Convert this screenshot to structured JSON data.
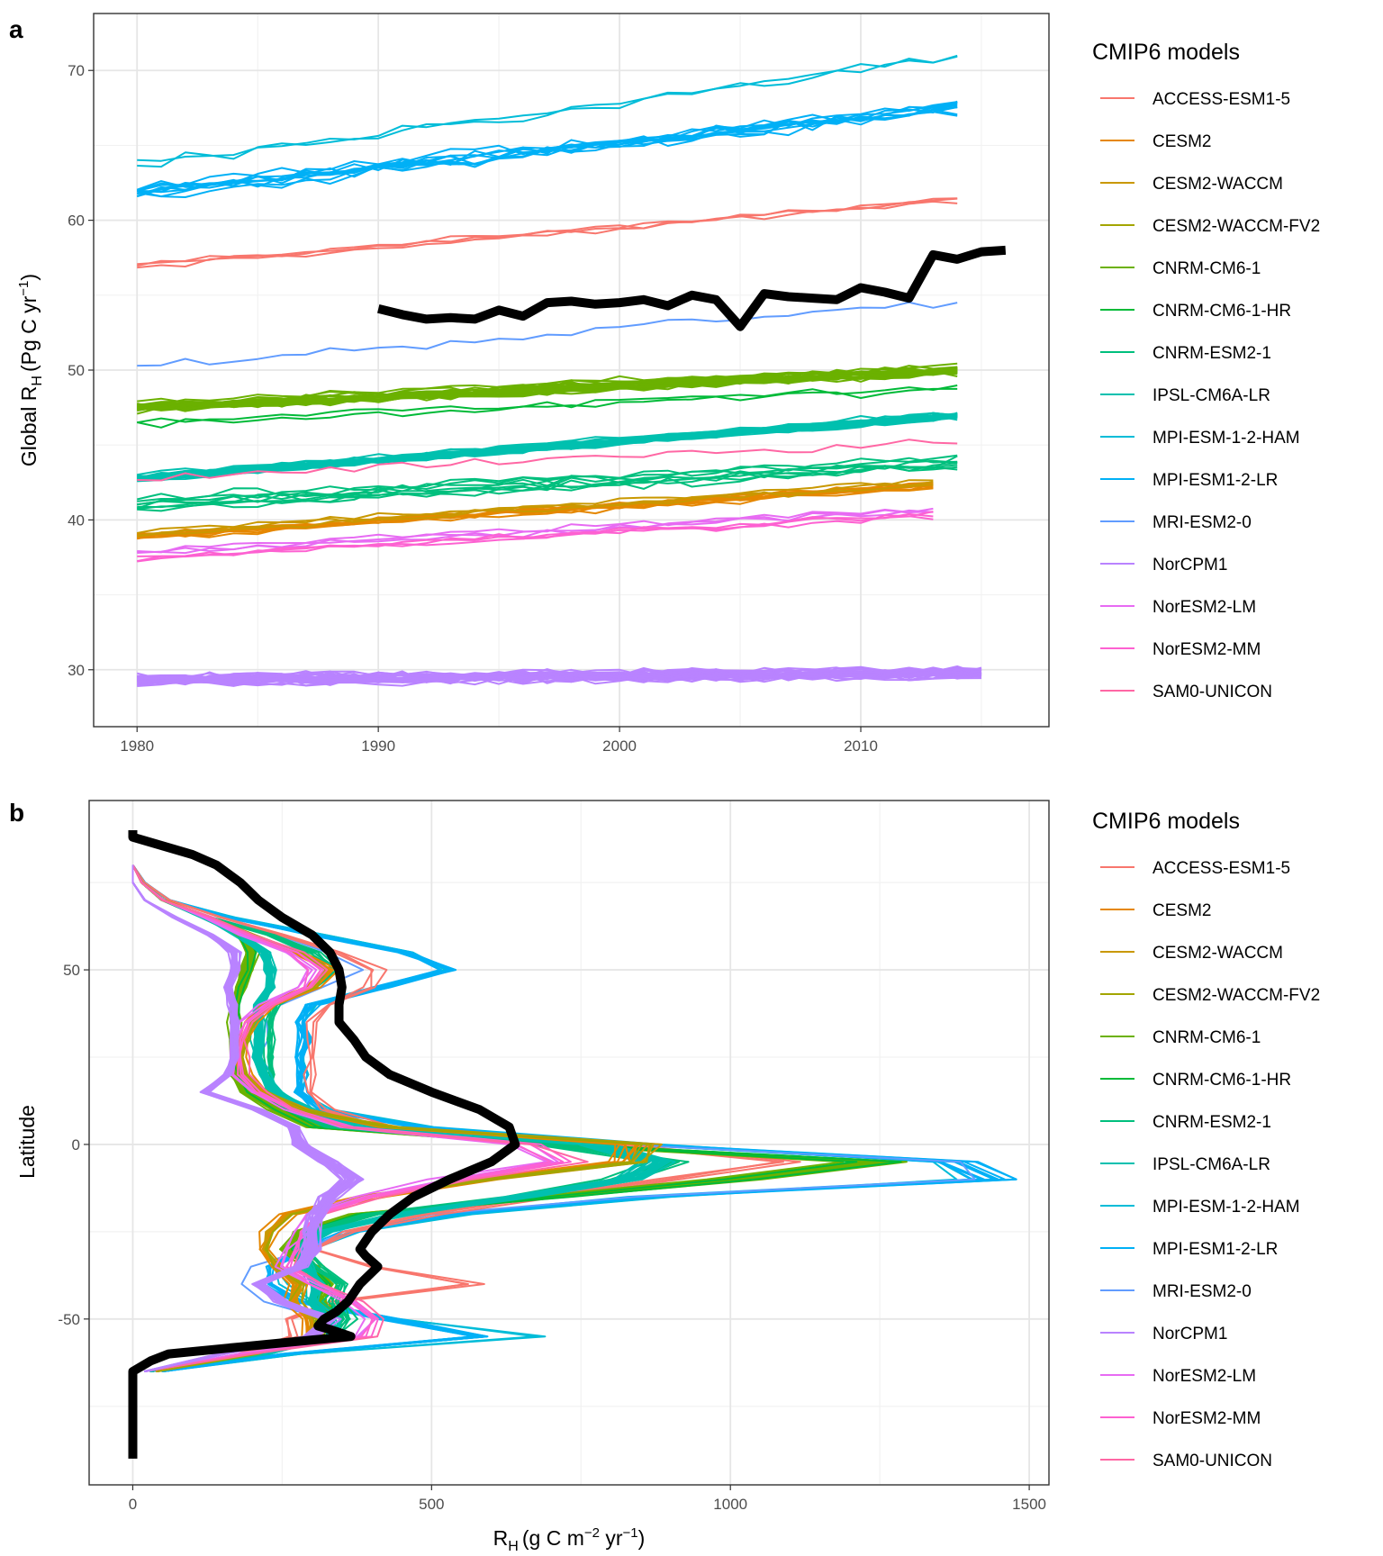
{
  "panels": {
    "a": {
      "letter": "a",
      "ylabel_main": "Global R",
      "ylabel_sub": "H",
      "ylabel_paren": "(Pg C yr",
      "ylabel_sup": "−1",
      "ylabel_close": ")",
      "legend_title": "CMIP6 models"
    },
    "b": {
      "letter": "b",
      "ylabel": "Latitude",
      "xlabel_main": "R",
      "xlabel_sub": "H",
      "xlabel_paren": "(g C m",
      "xlabel_sup1": "−2",
      "xlabel_mid": " yr",
      "xlabel_sup2": "−1",
      "xlabel_close": ")",
      "legend_title": "CMIP6 models"
    }
  },
  "models": [
    {
      "name": "ACCESS-ESM1-5",
      "color": "#F8766D"
    },
    {
      "name": "CESM2",
      "color": "#E58700"
    },
    {
      "name": "CESM2-WACCM",
      "color": "#C99800"
    },
    {
      "name": "CESM2-WACCM-FV2",
      "color": "#A3A500"
    },
    {
      "name": "CNRM-CM6-1",
      "color": "#6BB100"
    },
    {
      "name": "CNRM-CM6-1-HR",
      "color": "#00BA38"
    },
    {
      "name": "CNRM-ESM2-1",
      "color": "#00BF7D"
    },
    {
      "name": "IPSL-CM6A-LR",
      "color": "#00C0AF"
    },
    {
      "name": "MPI-ESM-1-2-HAM",
      "color": "#00BCD8"
    },
    {
      "name": "MPI-ESM1-2-LR",
      "color": "#00B0F6"
    },
    {
      "name": "MRI-ESM2-0",
      "color": "#619CFF"
    },
    {
      "name": "NorCPM1",
      "color": "#B983FF"
    },
    {
      "name": "NorESM2-LM",
      "color": "#E76BF3"
    },
    {
      "name": "NorESM2-MM",
      "color": "#FD61D1"
    },
    {
      "name": "SAM0-UNICON",
      "color": "#FF67A4"
    }
  ],
  "chart_data": [
    {
      "type": "line",
      "panel": "a",
      "xlim": [
        1978.2,
        2017.8
      ],
      "ylim": [
        26.2,
        73.8
      ],
      "xticks": [
        1980,
        1990,
        2000,
        2010
      ],
      "yticks": [
        30,
        40,
        50,
        60,
        70
      ],
      "grid": true,
      "legend_position": "right",
      "observed": {
        "color": "#000000",
        "x": [
          1990,
          1991,
          1992,
          1993,
          1994,
          1995,
          1996,
          1997,
          1998,
          1999,
          2000,
          2001,
          2002,
          2003,
          2004,
          2005,
          2006,
          2007,
          2008,
          2009,
          2010,
          2011,
          2012,
          2013,
          2014,
          2015,
          2016
        ],
        "y": [
          54.1,
          53.7,
          53.4,
          53.5,
          53.4,
          54.0,
          53.6,
          54.5,
          54.6,
          54.4,
          54.5,
          54.7,
          54.3,
          55.0,
          54.7,
          52.9,
          55.1,
          54.9,
          54.8,
          54.7,
          55.5,
          55.2,
          54.8,
          57.7,
          57.4,
          57.9,
          58.0
        ]
      },
      "series": [
        {
          "model": "MPI-ESM-1-2-HAM",
          "start": 1980,
          "end": 2014,
          "y0": 63.6,
          "y1": 70.9,
          "members": 2,
          "spread": 0.4,
          "noise": 0.7
        },
        {
          "model": "MPI-ESM1-2-LR",
          "start": 1980,
          "end": 2014,
          "y0": 61.8,
          "y1": 67.5,
          "members": 10,
          "spread": 0.5,
          "noise": 0.6
        },
        {
          "model": "ACCESS-ESM1-5",
          "start": 1980,
          "end": 2014,
          "y0": 57.0,
          "y1": 61.4,
          "members": 3,
          "spread": 0.25,
          "noise": 0.3
        },
        {
          "model": "MRI-ESM2-0",
          "start": 1980,
          "end": 2014,
          "y0": 50.2,
          "y1": 54.6,
          "members": 1,
          "spread": 0,
          "noise": 0.5
        },
        {
          "model": "CNRM-CM6-1",
          "start": 1980,
          "end": 2014,
          "y0": 47.5,
          "y1": 50.0,
          "members": 25,
          "spread": 0.45,
          "noise": 0.4
        },
        {
          "model": "CNRM-CM6-1-HR",
          "start": 1980,
          "end": 2014,
          "y0": 46.4,
          "y1": 48.8,
          "members": 2,
          "spread": 0.3,
          "noise": 0.4
        },
        {
          "model": "IPSL-CM6A-LR",
          "start": 1980,
          "end": 2014,
          "y0": 42.8,
          "y1": 47.0,
          "members": 25,
          "spread": 0.3,
          "noise": 0.3
        },
        {
          "model": "CNRM-ESM2-1",
          "start": 1980,
          "end": 2014,
          "y0": 41.0,
          "y1": 43.8,
          "members": 8,
          "spread": 1.0,
          "noise": 0.5
        },
        {
          "model": "SAM0-UNICON",
          "start": 1980,
          "end": 2014,
          "y0": 42.7,
          "y1": 45.3,
          "members": 1,
          "spread": 0,
          "noise": 0.4
        },
        {
          "model": "CESM2",
          "start": 1980,
          "end": 2013,
          "y0": 38.8,
          "y1": 42.2,
          "members": 9,
          "spread": 0.35,
          "noise": 0.3
        },
        {
          "model": "CESM2-WACCM",
          "start": 1980,
          "end": 2013,
          "y0": 39.1,
          "y1": 42.5,
          "members": 3,
          "spread": 0.3,
          "noise": 0.3
        },
        {
          "model": "NorESM2-LM",
          "start": 1980,
          "end": 2013,
          "y0": 37.9,
          "y1": 40.7,
          "members": 3,
          "spread": 0.3,
          "noise": 0.4
        },
        {
          "model": "NorESM2-MM",
          "start": 1980,
          "end": 2013,
          "y0": 37.5,
          "y1": 40.4,
          "members": 3,
          "spread": 0.3,
          "noise": 0.4
        },
        {
          "model": "NorCPM1",
          "start": 1980,
          "end": 2015,
          "y0": 29.3,
          "y1": 29.8,
          "members": 30,
          "spread": 0.35,
          "noise": 0.5
        }
      ]
    },
    {
      "type": "line",
      "panel": "b",
      "xlim": [
        -73,
        1533
      ],
      "ylim": [
        -97.5,
        98.5
      ],
      "xticks": [
        0,
        500,
        1000,
        1500
      ],
      "yticks": [
        -50,
        0,
        50
      ],
      "grid": true,
      "legend_position": "right",
      "latitudes": [
        -65,
        -60,
        -55,
        -50,
        -45,
        -40,
        -35,
        -30,
        -25,
        -20,
        -15,
        -10,
        -5,
        0,
        5,
        10,
        15,
        20,
        25,
        30,
        35,
        40,
        45,
        50,
        55,
        60,
        65,
        70,
        75,
        80
      ],
      "observed": {
        "color": "#000000",
        "lat": [
          -90,
          -80,
          -70,
          -65,
          -62,
          -60,
          -58,
          -56,
          -55,
          -53,
          -52,
          -50,
          -48,
          -45,
          -40,
          -35,
          -32,
          -30,
          -25,
          -20,
          -15,
          -10,
          -5,
          0,
          5,
          10,
          15,
          20,
          25,
          30,
          35,
          40,
          45,
          50,
          55,
          60,
          65,
          70,
          75,
          80,
          83,
          85,
          88,
          90
        ],
        "x": [
          0,
          0,
          0,
          0,
          30,
          60,
          180,
          300,
          365,
          330,
          310,
          320,
          340,
          360,
          380,
          410,
          390,
          380,
          400,
          430,
          470,
          530,
          600,
          640,
          630,
          580,
          500,
          430,
          390,
          370,
          345,
          345,
          350,
          345,
          330,
          300,
          250,
          210,
          180,
          140,
          100,
          60,
          0,
          0
        ]
      },
      "profiles": [
        {
          "model": "MPI-ESM-1-2-HAM",
          "members": 2,
          "x": [
            50,
            280,
            680,
            450,
            300,
            250,
            240,
            300,
            390,
            560,
            900,
            1400,
            1350,
            880,
            500,
            330,
            280,
            290,
            290,
            290,
            290,
            310,
            430,
            530,
            470,
            320,
            170,
            60,
            20,
            0
          ]
        },
        {
          "model": "MPI-ESM1-2-LR",
          "members": 10,
          "x": [
            50,
            260,
            580,
            430,
            280,
            230,
            230,
            290,
            370,
            530,
            860,
            1450,
            1380,
            850,
            480,
            320,
            280,
            280,
            280,
            290,
            280,
            300,
            420,
            530,
            460,
            310,
            160,
            60,
            20,
            0
          ]
        },
        {
          "model": "MRI-ESM2-0",
          "members": 1,
          "x": [
            40,
            200,
            350,
            320,
            220,
            180,
            200,
            290,
            350,
            500,
            850,
            1410,
            1380,
            820,
            420,
            300,
            220,
            240,
            220,
            230,
            220,
            250,
            320,
            380,
            330,
            240,
            130,
            50,
            15,
            0
          ]
        },
        {
          "model": "ACCESS-ESM1-5",
          "members": 3,
          "x": [
            30,
            180,
            270,
            260,
            340,
            570,
            400,
            300,
            360,
            500,
            700,
            900,
            1100,
            800,
            420,
            320,
            300,
            300,
            300,
            300,
            300,
            330,
            400,
            410,
            340,
            250,
            150,
            60,
            20,
            0
          ]
        },
        {
          "model": "CNRM-CM6-1",
          "members": 25,
          "x": [
            30,
            200,
            300,
            320,
            310,
            320,
            300,
            260,
            280,
            380,
            700,
            1000,
            1240,
            700,
            300,
            240,
            190,
            170,
            170,
            170,
            170,
            170,
            180,
            190,
            200,
            180,
            120,
            50,
            15,
            0
          ]
        },
        {
          "model": "CNRM-CM6-1-HR",
          "members": 2,
          "x": [
            30,
            210,
            310,
            320,
            320,
            330,
            300,
            270,
            290,
            390,
            720,
            1020,
            1260,
            720,
            310,
            250,
            200,
            180,
            175,
            175,
            175,
            175,
            185,
            195,
            205,
            185,
            125,
            50,
            15,
            0
          ]
        },
        {
          "model": "CNRM-ESM2-1",
          "members": 8,
          "x": [
            30,
            200,
            330,
            360,
            340,
            350,
            310,
            280,
            300,
            400,
            650,
            820,
            900,
            700,
            330,
            260,
            230,
            230,
            230,
            230,
            230,
            240,
            300,
            340,
            300,
            230,
            130,
            50,
            15,
            0
          ]
        },
        {
          "model": "IPSL-CM6A-LR",
          "members": 25,
          "x": [
            30,
            220,
            340,
            330,
            300,
            310,
            290,
            280,
            320,
            450,
            650,
            830,
            880,
            780,
            380,
            290,
            240,
            220,
            210,
            210,
            210,
            210,
            230,
            230,
            220,
            180,
            120,
            50,
            15,
            0
          ]
        },
        {
          "model": "CESM2",
          "members": 9,
          "x": [
            40,
            200,
            300,
            300,
            270,
            280,
            240,
            220,
            230,
            260,
            400,
            590,
            830,
            840,
            430,
            280,
            220,
            190,
            180,
            190,
            200,
            230,
            300,
            330,
            280,
            200,
            130,
            50,
            15,
            0
          ]
        },
        {
          "model": "CESM2-WACCM",
          "members": 3,
          "x": [
            40,
            200,
            300,
            300,
            270,
            280,
            240,
            220,
            230,
            260,
            400,
            590,
            850,
            870,
            440,
            280,
            220,
            190,
            180,
            190,
            200,
            230,
            300,
            330,
            280,
            200,
            130,
            50,
            15,
            0
          ]
        },
        {
          "model": "CESM2-WACCM-FV2",
          "members": 2,
          "x": [
            40,
            210,
            310,
            300,
            270,
            280,
            240,
            220,
            230,
            260,
            400,
            590,
            840,
            850,
            430,
            280,
            220,
            190,
            180,
            190,
            200,
            230,
            300,
            320,
            280,
            200,
            130,
            50,
            15,
            0
          ]
        },
        {
          "model": "NorESM2-LM",
          "members": 3,
          "x": [
            20,
            180,
            380,
            400,
            360,
            300,
            250,
            260,
            280,
            300,
            380,
            520,
            700,
            640,
            350,
            260,
            200,
            170,
            170,
            170,
            180,
            220,
            280,
            300,
            260,
            180,
            120,
            50,
            15,
            0
          ]
        },
        {
          "model": "NorESM2-MM",
          "members": 3,
          "x": [
            20,
            190,
            390,
            410,
            370,
            310,
            260,
            270,
            290,
            310,
            400,
            540,
            720,
            660,
            360,
            270,
            210,
            180,
            180,
            180,
            190,
            230,
            290,
            310,
            270,
            190,
            130,
            50,
            15,
            0
          ]
        },
        {
          "model": "SAM0-UNICON",
          "members": 1,
          "x": [
            20,
            200,
            400,
            420,
            380,
            320,
            270,
            280,
            300,
            330,
            420,
            560,
            760,
            660,
            360,
            270,
            220,
            190,
            190,
            190,
            200,
            240,
            300,
            320,
            280,
            200,
            130,
            50,
            15,
            0
          ]
        },
        {
          "model": "NorCPM1",
          "members": 30,
          "x": [
            20,
            150,
            300,
            330,
            250,
            210,
            280,
            300,
            300,
            310,
            330,
            370,
            330,
            280,
            270,
            210,
            120,
            160,
            170,
            170,
            170,
            170,
            160,
            170,
            170,
            130,
            70,
            20,
            0,
            0
          ]
        }
      ]
    }
  ]
}
